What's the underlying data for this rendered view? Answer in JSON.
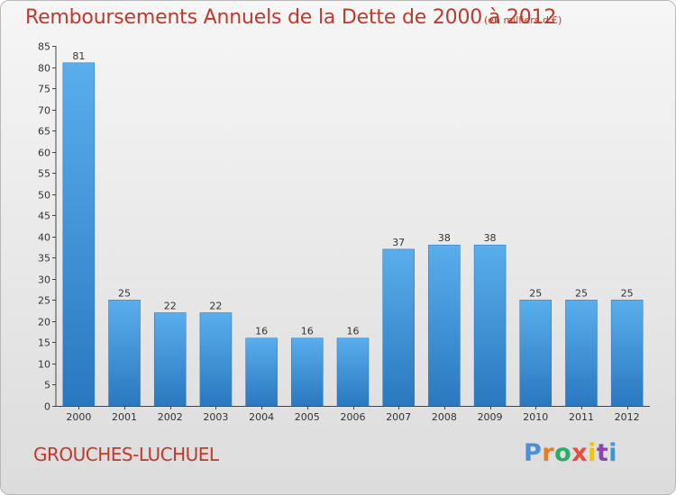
{
  "chart_data": {
    "type": "bar",
    "title": "Remboursements Annuels de la Dette de 2000 à 2012",
    "subtitle": "(en milliers d'€)",
    "categories": [
      "2000",
      "2001",
      "2002",
      "2003",
      "2004",
      "2005",
      "2006",
      "2007",
      "2008",
      "2009",
      "2010",
      "2011",
      "2012"
    ],
    "values": [
      81,
      25,
      22,
      22,
      16,
      16,
      16,
      37,
      38,
      38,
      25,
      25,
      25
    ],
    "xlabel": "",
    "ylabel": "",
    "ylim": [
      0,
      85
    ],
    "ytick_step": 5,
    "grid": false,
    "legend": "none",
    "bar_color": "#3d8fd6"
  },
  "footer": {
    "commune": "GROUCHES-LUCHUEL",
    "brand": "Proxiti",
    "brand_colors": [
      "#4a90d9",
      "#e67e22",
      "#27ae60",
      "#e74c3c",
      "#f1c40f",
      "#8e44ad",
      "#3498db"
    ]
  }
}
